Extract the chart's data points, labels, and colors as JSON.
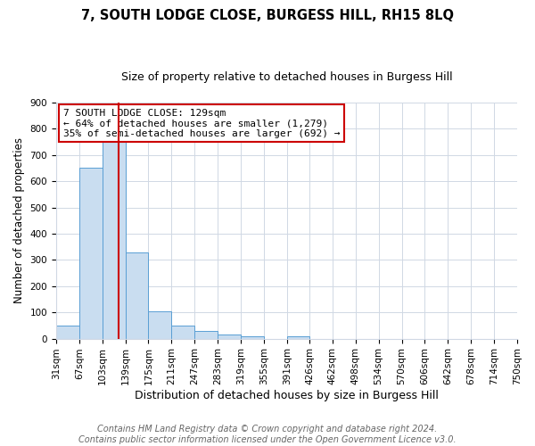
{
  "title": "7, SOUTH LODGE CLOSE, BURGESS HILL, RH15 8LQ",
  "subtitle": "Size of property relative to detached houses in Burgess Hill",
  "xlabel": "Distribution of detached houses by size in Burgess Hill",
  "ylabel": "Number of detached properties",
  "bin_edges": [
    31,
    67,
    103,
    139,
    175,
    211,
    247,
    283,
    319,
    355,
    391,
    426,
    462,
    498,
    534,
    570,
    606,
    642,
    678,
    714,
    750
  ],
  "bar_heights": [
    50,
    650,
    750,
    330,
    105,
    50,
    28,
    15,
    10,
    0,
    8,
    0,
    0,
    0,
    0,
    0,
    0,
    0,
    0,
    0
  ],
  "bar_color": "#c9ddf0",
  "bar_edgecolor": "#5a9fd4",
  "vline_x": 129,
  "vline_color": "#cc0000",
  "ylim": [
    0,
    900
  ],
  "annotation_text": "7 SOUTH LODGE CLOSE: 129sqm\n← 64% of detached houses are smaller (1,279)\n35% of semi-detached houses are larger (692) →",
  "annotation_box_color": "#ffffff",
  "annotation_box_edgecolor": "#cc0000",
  "footnote": "Contains HM Land Registry data © Crown copyright and database right 2024.\nContains public sector information licensed under the Open Government Licence v3.0.",
  "title_fontsize": 10.5,
  "subtitle_fontsize": 9,
  "xlabel_fontsize": 9,
  "ylabel_fontsize": 8.5,
  "tick_fontsize": 7.5,
  "annotation_fontsize": 8,
  "footnote_fontsize": 7,
  "background_color": "#ffffff",
  "grid_color": "#d0d8e4"
}
